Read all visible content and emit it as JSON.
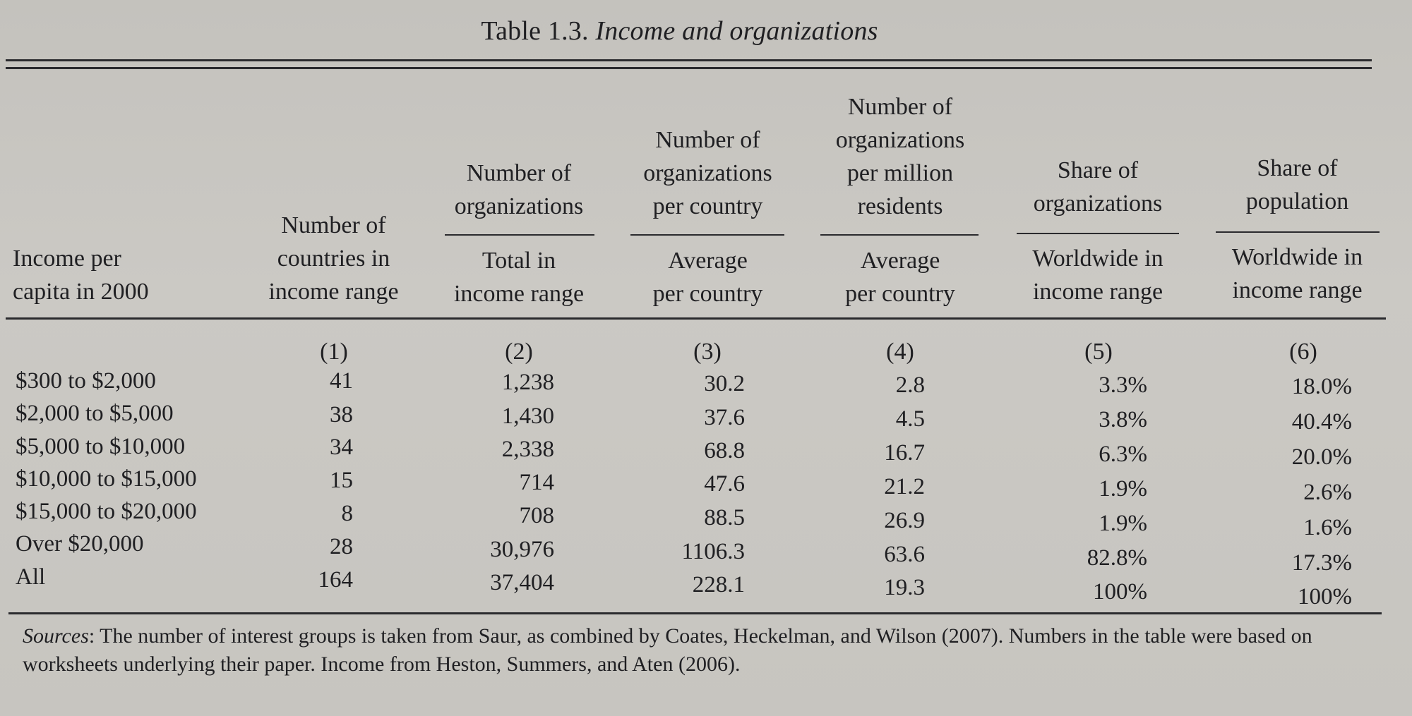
{
  "title": {
    "prefix": "Table 1.3.",
    "caption": "Income and organizations"
  },
  "headers": {
    "col0": [
      "Income per",
      "capita in 2000"
    ],
    "col1": [
      "Number of",
      "countries in",
      "income range"
    ],
    "col2_top": [
      "Number of",
      "organizations"
    ],
    "col2_bottom": [
      "Total in",
      "income range"
    ],
    "col3_top": [
      "Number of",
      "organizations",
      "per country"
    ],
    "col3_bottom": [
      "Average",
      "per country"
    ],
    "col4_top": [
      "Number of",
      "organizations",
      "per million",
      "residents"
    ],
    "col4_bottom": [
      "Average",
      "per country"
    ],
    "col5_top": [
      "Share of",
      "organizations"
    ],
    "col5_bottom": [
      "Worldwide in",
      "income range"
    ],
    "col6_top": [
      "Share of",
      "population"
    ],
    "col6_bottom": [
      "Worldwide in",
      "income range"
    ]
  },
  "column_numbers": [
    "(1)",
    "(2)",
    "(3)",
    "(4)",
    "(5)",
    "(6)"
  ],
  "rows": [
    {
      "label": "$300 to $2,000",
      "values": [
        "41",
        "1,238",
        "30.2",
        "2.8",
        "3.3%",
        "18.0%"
      ]
    },
    {
      "label": "$2,000 to $5,000",
      "values": [
        "38",
        "1,430",
        "37.6",
        "4.5",
        "3.8%",
        "40.4%"
      ]
    },
    {
      "label": "$5,000 to $10,000",
      "values": [
        "34",
        "2,338",
        "68.8",
        "16.7",
        "6.3%",
        "20.0%"
      ]
    },
    {
      "label": "$10,000 to $15,000",
      "values": [
        "15",
        "714",
        "47.6",
        "21.2",
        "1.9%",
        "2.6%"
      ]
    },
    {
      "label": "$15,000 to $20,000",
      "values": [
        "8",
        "708",
        "88.5",
        "26.9",
        "1.9%",
        "1.6%"
      ]
    },
    {
      "label": "Over $20,000",
      "values": [
        "28",
        "30,976",
        "1106.3",
        "63.6",
        "82.8%",
        "17.3%"
      ]
    },
    {
      "label": "All",
      "values": [
        "164",
        "37,404",
        "228.1",
        "19.3",
        "100%",
        "100%"
      ]
    }
  ],
  "sources": {
    "label": "Sources",
    "text": ": The number of interest groups is taken from Saur, as combined by Coates, Heckelman, and Wilson (2007). Numbers in the table were based on worksheets underlying their paper. Income from Heston, Summers, and Aten (2006)."
  }
}
